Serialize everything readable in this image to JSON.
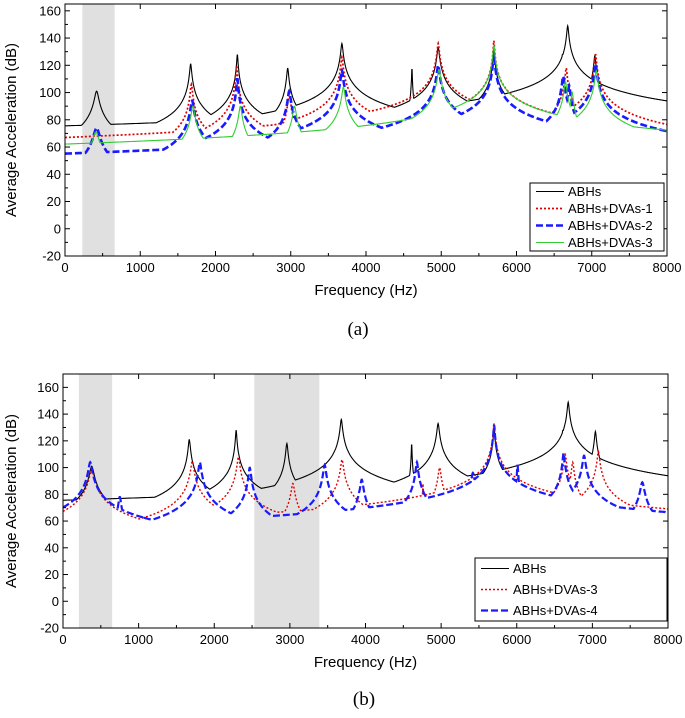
{
  "chart_data": [
    {
      "type": "line",
      "panel_label": "(a)",
      "xlabel": "Frequency (Hz)",
      "ylabel": "Average Acceleration (dB)",
      "xlim": [
        0,
        8000
      ],
      "ylim": [
        -20,
        165
      ],
      "x_ticks": [
        0,
        1000,
        2000,
        3000,
        4000,
        5000,
        6000,
        7000,
        8000
      ],
      "y_ticks": [
        -20,
        0,
        20,
        40,
        60,
        80,
        100,
        120,
        140,
        160
      ],
      "shaded_bands": [
        [
          230,
          660
        ]
      ],
      "legend_position": "bottom-right",
      "series": [
        {
          "name": "ABHs",
          "color": "#000000",
          "style": "solid",
          "width": 1.1,
          "resonances": [
            [
              420,
              101,
              22
            ],
            [
              1670,
              121,
              10
            ],
            [
              2290,
              128,
              7
            ],
            [
              2960,
              118,
              10
            ],
            [
              3680,
              136,
              11
            ],
            [
              4610,
              119,
              3
            ],
            [
              4960,
              133,
              12
            ],
            [
              5700,
              133,
              7
            ],
            [
              6010,
              80,
              4
            ],
            [
              6610,
              128,
              10
            ],
            [
              6680,
              149,
              10
            ],
            [
              7040,
              127,
              10
            ],
            [
              7190,
              86,
              3
            ]
          ]
        },
        {
          "name": "ABHs+DVAs-1",
          "color": "#e00000",
          "style": "dotted",
          "width": 1.7,
          "resonances": [
            [
              280,
              56,
              45
            ],
            [
              560,
              63,
              45
            ],
            [
              1680,
              106,
              11
            ],
            [
              2280,
              120,
              7
            ],
            [
              2980,
              100,
              11
            ],
            [
              3680,
              126,
              11
            ],
            [
              4760,
              87,
              4
            ],
            [
              4960,
              136,
              11
            ],
            [
              5700,
              138,
              7
            ],
            [
              6010,
              80,
              4
            ],
            [
              6660,
              118,
              10
            ],
            [
              6720,
              99,
              10
            ],
            [
              7050,
              128,
              10
            ],
            [
              7190,
              86,
              3
            ]
          ]
        },
        {
          "name": "ABHs+DVAs-2",
          "color": "#1a1aff",
          "style": "dashed",
          "width": 2.6,
          "resonances": [
            [
              420,
              74,
              30
            ],
            [
              1690,
              94,
              16
            ],
            [
              2290,
              110,
              9
            ],
            [
              2380,
              81,
              12
            ],
            [
              2980,
              101,
              14
            ],
            [
              3680,
              116,
              13
            ],
            [
              4960,
              120,
              13
            ],
            [
              5700,
              128,
              9
            ],
            [
              6010,
              80,
              5
            ],
            [
              6620,
              112,
              12
            ],
            [
              6700,
              105,
              12
            ],
            [
              7050,
              121,
              12
            ],
            [
              7190,
              84,
              4
            ]
          ]
        },
        {
          "name": "ABHs+DVAs-3",
          "color": "#33cc33",
          "style": "solid",
          "width": 1.1,
          "resonances": [
            [
              410,
              71,
              32
            ],
            [
              1700,
              90,
              17
            ],
            [
              2330,
              90,
              15
            ],
            [
              3050,
              90,
              17
            ],
            [
              3700,
              104,
              15
            ],
            [
              4620,
              80,
              4
            ],
            [
              4970,
              117,
              15
            ],
            [
              5700,
              135,
              9
            ],
            [
              6010,
              83,
              5
            ],
            [
              6650,
              108,
              13
            ],
            [
              6740,
              100,
              12
            ],
            [
              7060,
              116,
              13
            ],
            [
              7200,
              87,
              4
            ]
          ]
        }
      ]
    },
    {
      "type": "line",
      "panel_label": "(b)",
      "xlabel": "Frequency (Hz)",
      "ylabel": "Average Acceleration (dB)",
      "xlim": [
        0,
        8000
      ],
      "ylim": [
        -20,
        170
      ],
      "x_ticks": [
        0,
        1000,
        2000,
        3000,
        4000,
        5000,
        6000,
        7000,
        8000
      ],
      "y_ticks": [
        -20,
        0,
        20,
        40,
        60,
        80,
        100,
        120,
        140,
        160
      ],
      "shaded_bands": [
        [
          210,
          650
        ],
        [
          2530,
          3390
        ]
      ],
      "legend_position": "bottom-right",
      "series": [
        {
          "name": "ABHs",
          "color": "#000000",
          "style": "solid",
          "width": 1.1,
          "resonances": [
            [
              380,
              101,
              22
            ],
            [
              1670,
              121,
              10
            ],
            [
              2290,
              128,
              7
            ],
            [
              2960,
              118,
              10
            ],
            [
              3680,
              136,
              11
            ],
            [
              4610,
              119,
              3
            ],
            [
              4960,
              133,
              12
            ],
            [
              5700,
              130,
              7
            ],
            [
              6010,
              80,
              4
            ],
            [
              6610,
              128,
              10
            ],
            [
              6680,
              149,
              10
            ],
            [
              7040,
              127,
              10
            ],
            [
              7190,
              86,
              3
            ]
          ]
        },
        {
          "name": "ABHs+DVAs-3",
          "color": "#e00000",
          "style": "dotted",
          "width": 1.4,
          "resonances": [
            [
              380,
              98,
              25
            ],
            [
              1710,
              105,
              15
            ],
            [
              2320,
              108,
              13
            ],
            [
              3040,
              88,
              17
            ],
            [
              3690,
              106,
              14
            ],
            [
              4760,
              88,
              4
            ],
            [
              4980,
              100,
              14
            ],
            [
              5700,
              133,
              8
            ],
            [
              6010,
              80,
              5
            ],
            [
              6640,
              110,
              12
            ],
            [
              6740,
              104,
              12
            ],
            [
              7080,
              112,
              12
            ],
            [
              7190,
              87,
              4
            ]
          ]
        },
        {
          "name": "ABHs+DVAs-4",
          "color": "#1a1aff",
          "style": "dashed",
          "width": 2.2,
          "resonances": [
            [
              360,
              104,
              18
            ],
            [
              480,
              67,
              20
            ],
            [
              540,
              68,
              20
            ],
            [
              750,
              78,
              15
            ],
            [
              1050,
              64,
              10
            ],
            [
              1810,
              104,
              14
            ],
            [
              2470,
              100,
              12
            ],
            [
              3460,
              102,
              14
            ],
            [
              3950,
              91,
              16
            ],
            [
              4680,
              104,
              12
            ],
            [
              5420,
              96,
              18
            ],
            [
              5700,
              132,
              7
            ],
            [
              6010,
              102,
              6
            ],
            [
              6620,
              111,
              10
            ],
            [
              6890,
              109,
              15
            ],
            [
              7660,
              89,
              20
            ]
          ]
        }
      ]
    }
  ]
}
